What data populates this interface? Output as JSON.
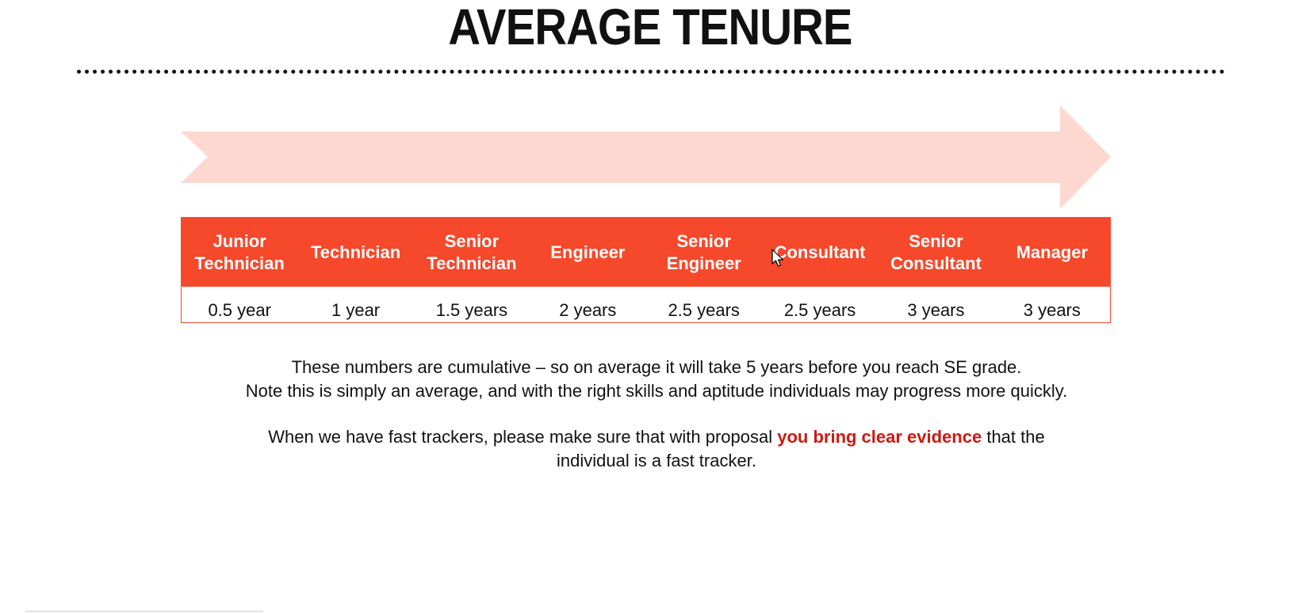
{
  "slide": {
    "title": "AVERAGE TENURE",
    "colors": {
      "header_fill": "#f6482b",
      "arrow_fill": "#fdd8d1",
      "highlight": "#cc1a12",
      "text": "#111111"
    }
  },
  "tenure": {
    "grades": [
      "Junior\nTechnician",
      "Technician",
      "Senior\nTechnician",
      "Engineer",
      "Senior\nEngineer",
      "Consultant",
      "Senior\nConsultant",
      "Manager"
    ],
    "durations": [
      "0.5 year",
      "1 year",
      "1.5 years",
      "2 years",
      "2.5 years",
      "2.5 years",
      "3 years",
      "3 years"
    ]
  },
  "notes": {
    "line1": "These numbers are cumulative – so on average it will take 5 years before you reach SE grade.",
    "line2": "Note this is simply an average, and with the right skills and aptitude individuals may progress more quickly.",
    "fast_tracker_before": "When we have fast trackers, please make sure that with proposal ",
    "fast_tracker_highlight": "you bring clear evidence",
    "fast_tracker_after_line1": " that the",
    "fast_tracker_line2": "individual is a fast tracker."
  },
  "icons": {
    "cursor": "mouse-pointer-icon",
    "arrow": "progression-arrow"
  }
}
